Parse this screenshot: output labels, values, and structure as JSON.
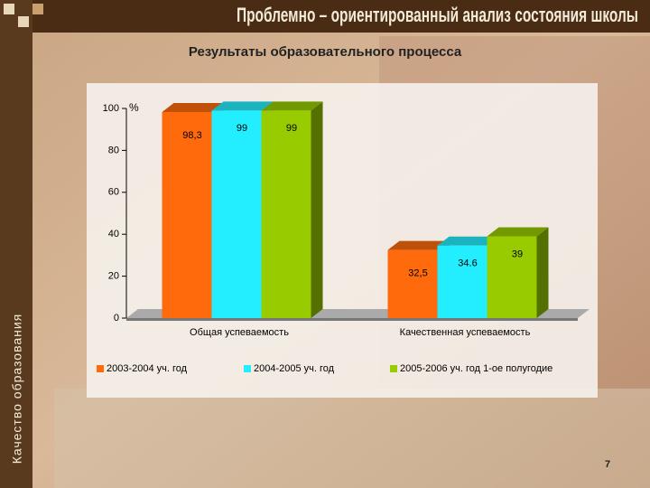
{
  "slide": {
    "header": "Проблемно – ориентированный анализ состояния школы",
    "side_label": "Качество образования",
    "page_number": "7"
  },
  "chart_data": {
    "type": "bar3d",
    "title": "Результаты образовательного процесса",
    "categories": [
      "Общая успеваемость",
      "Качественная успеваемость"
    ],
    "y_unit": "%",
    "series": [
      {
        "name": "2003-2004 уч. год",
        "color": "#ff6a0d",
        "values": [
          98.3,
          32.5
        ],
        "value_labels": [
          "98,3",
          "32,5"
        ]
      },
      {
        "name": "2004-2005 уч. год",
        "color": "#22eeff",
        "values": [
          99,
          34.6
        ]
      },
      {
        "name": "2005-2006 уч. год 1-ое полугодие",
        "color": "#99cc00",
        "values": [
          99,
          39
        ]
      }
    ],
    "ylim": [
      0,
      100
    ],
    "yticks": [
      0,
      20,
      40,
      60,
      80,
      100
    ],
    "legend": "bottom"
  }
}
